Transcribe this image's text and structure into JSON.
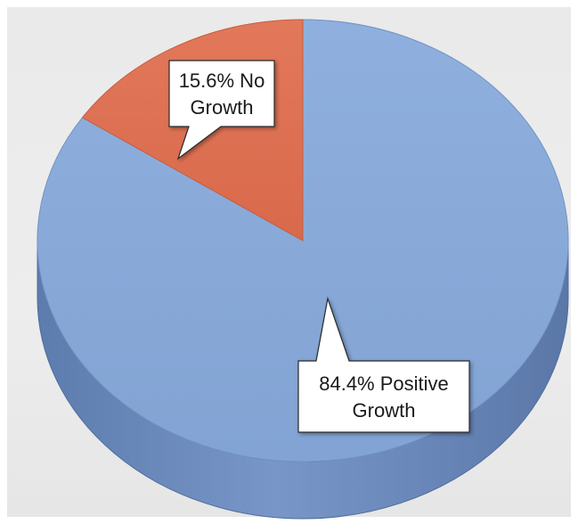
{
  "chart_data": {
    "type": "pie",
    "style": "3d",
    "title": "",
    "slices": [
      {
        "label_lines": [
          "84.4% Positive",
          "Growth"
        ],
        "value": 84.4,
        "color": "#87a8d8",
        "side_color": "#6785b6"
      },
      {
        "label_lines": [
          "15.6% No",
          "Growth"
        ],
        "value": 15.6,
        "color": "#df7153",
        "side_color": "#b9553a"
      }
    ],
    "legend": "none"
  }
}
